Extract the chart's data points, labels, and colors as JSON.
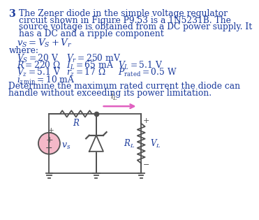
{
  "problem_number": "3",
  "title_lines": [
    "The Zener diode in the simple voltage regulator",
    "circuit shown in Figure P9.53 is a 1N5231B. The",
    "source voltage is obtained from a DC power supply. It",
    "has a DC and a ripple component"
  ],
  "equation": "$v_S = V_S + V_r$",
  "where_text": "where:",
  "param_rows": [
    [
      [
        "$V_S = 20$ V",
        18
      ],
      [
        "$V_r = 250$ mV",
        110
      ],
      [
        "",
        0
      ]
    ],
    [
      [
        "$R = 220~\\Omega$",
        18
      ],
      [
        "$I_L = 65$ mA",
        110
      ],
      [
        "$V_L = 5.1$ V",
        205
      ]
    ],
    [
      [
        "$V_z = 5.1$ V",
        18
      ],
      [
        "$r_z = 17~\\Omega$",
        110
      ],
      [
        "$P_\\mathrm{rated} = 0.5$ W",
        205
      ]
    ]
  ],
  "iz_min": "$i_{z\\,\\mathrm{min}} = 10$ mA",
  "question_lines": [
    "Determine the maximum rated current the diode can",
    "handle without exceeding its power limitation."
  ],
  "text_color": "#1a3a9c",
  "bg_color": "#ffffff",
  "circuit_line_color": "#505050",
  "arrow_color": "#e060c0",
  "source_face_color": "#f4b8c8",
  "fs_title": 8.8,
  "fs_eq": 9.5,
  "fs_param": 8.8,
  "fs_circuit": 8.0,
  "lw_circuit": 1.3
}
